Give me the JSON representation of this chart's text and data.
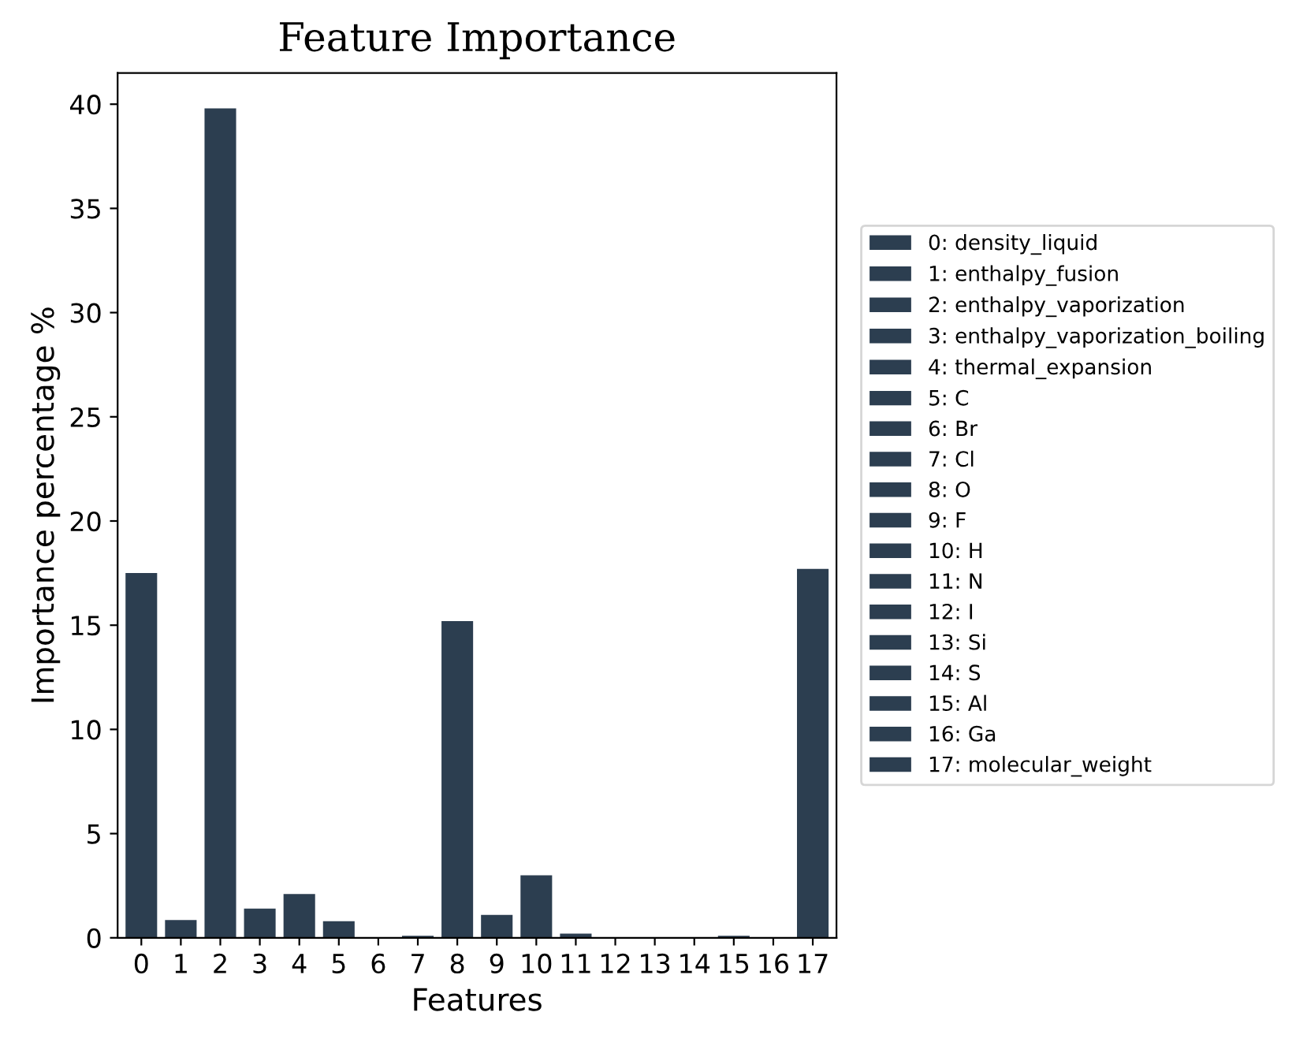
{
  "chart_data": {
    "type": "bar",
    "title": "Feature Importance",
    "xlabel": "Features",
    "ylabel": "Importance percentage %",
    "categories": [
      "0",
      "1",
      "2",
      "3",
      "4",
      "5",
      "6",
      "7",
      "8",
      "9",
      "10",
      "11",
      "12",
      "13",
      "14",
      "15",
      "16",
      "17"
    ],
    "series": [
      {
        "name": "0: density_liquid",
        "color": "#2c3e50",
        "values": [
          17.5,
          null,
          null,
          null,
          null,
          null,
          null,
          null,
          null,
          null,
          null,
          null,
          null,
          null,
          null,
          null,
          null,
          null
        ]
      },
      {
        "name": "1: enthalpy_fusion",
        "color": "#2c3e50",
        "values": [
          null,
          0.85,
          null,
          null,
          null,
          null,
          null,
          null,
          null,
          null,
          null,
          null,
          null,
          null,
          null,
          null,
          null,
          null
        ]
      },
      {
        "name": "2: enthalpy_vaporization",
        "color": "#2c3e50",
        "values": [
          null,
          null,
          39.8,
          null,
          null,
          null,
          null,
          null,
          null,
          null,
          null,
          null,
          null,
          null,
          null,
          null,
          null,
          null
        ]
      },
      {
        "name": "3: enthalpy_vaporization_boiling",
        "color": "#2c3e50",
        "values": [
          null,
          null,
          null,
          1.4,
          null,
          null,
          null,
          null,
          null,
          null,
          null,
          null,
          null,
          null,
          null,
          null,
          null,
          null
        ]
      },
      {
        "name": "4: thermal_expansion",
        "color": "#2c3e50",
        "values": [
          null,
          null,
          null,
          null,
          2.1,
          null,
          null,
          null,
          null,
          null,
          null,
          null,
          null,
          null,
          null,
          null,
          null,
          null
        ]
      },
      {
        "name": "5: C",
        "color": "#2c3e50",
        "values": [
          null,
          null,
          null,
          null,
          null,
          0.8,
          null,
          null,
          null,
          null,
          null,
          null,
          null,
          null,
          null,
          null,
          null,
          null
        ]
      },
      {
        "name": "6: Br",
        "color": "#2c3e50",
        "values": [
          null,
          null,
          null,
          null,
          null,
          null,
          0,
          null,
          null,
          null,
          null,
          null,
          null,
          null,
          null,
          null,
          null,
          null
        ]
      },
      {
        "name": "7: Cl",
        "color": "#2c3e50",
        "values": [
          null,
          null,
          null,
          null,
          null,
          null,
          null,
          0.1,
          null,
          null,
          null,
          null,
          null,
          null,
          null,
          null,
          null,
          null
        ]
      },
      {
        "name": "8: O",
        "color": "#2c3e50",
        "values": [
          null,
          null,
          null,
          null,
          null,
          null,
          null,
          null,
          15.2,
          null,
          null,
          null,
          null,
          null,
          null,
          null,
          null,
          null
        ]
      },
      {
        "name": "9: F",
        "color": "#2c3e50",
        "values": [
          null,
          null,
          null,
          null,
          null,
          null,
          null,
          null,
          null,
          1.1,
          null,
          null,
          null,
          null,
          null,
          null,
          null,
          null
        ]
      },
      {
        "name": "10: H",
        "color": "#2c3e50",
        "values": [
          null,
          null,
          null,
          null,
          null,
          null,
          null,
          null,
          null,
          null,
          3.0,
          null,
          null,
          null,
          null,
          null,
          null,
          null
        ]
      },
      {
        "name": "11: N",
        "color": "#2c3e50",
        "values": [
          null,
          null,
          null,
          null,
          null,
          null,
          null,
          null,
          null,
          null,
          null,
          0.2,
          null,
          null,
          null,
          null,
          null,
          null
        ]
      },
      {
        "name": "12: I",
        "color": "#2c3e50",
        "values": [
          null,
          null,
          null,
          null,
          null,
          null,
          null,
          null,
          null,
          null,
          null,
          null,
          0,
          null,
          null,
          null,
          null,
          null
        ]
      },
      {
        "name": "13: Si",
        "color": "#2c3e50",
        "values": [
          null,
          null,
          null,
          null,
          null,
          null,
          null,
          null,
          null,
          null,
          null,
          null,
          null,
          0,
          null,
          null,
          null,
          null
        ]
      },
      {
        "name": "14: S",
        "color": "#2c3e50",
        "values": [
          null,
          null,
          null,
          null,
          null,
          null,
          null,
          null,
          null,
          null,
          null,
          null,
          null,
          null,
          0,
          null,
          null,
          null
        ]
      },
      {
        "name": "15: Al",
        "color": "#2c3e50",
        "values": [
          null,
          null,
          null,
          null,
          null,
          null,
          null,
          null,
          null,
          null,
          null,
          null,
          null,
          null,
          null,
          0.1,
          null,
          null
        ]
      },
      {
        "name": "16: Ga",
        "color": "#2c3e50",
        "values": [
          null,
          null,
          null,
          null,
          null,
          null,
          null,
          null,
          null,
          null,
          null,
          null,
          null,
          null,
          null,
          null,
          0,
          null
        ]
      },
      {
        "name": "17: molecular_weight",
        "color": "#2c3e50",
        "values": [
          null,
          null,
          null,
          null,
          null,
          null,
          null,
          null,
          null,
          null,
          null,
          null,
          null,
          null,
          null,
          null,
          null,
          17.7
        ]
      }
    ],
    "ylim": [
      0,
      41.5
    ],
    "yticks": [
      0,
      5,
      10,
      15,
      20,
      25,
      30,
      35,
      40
    ],
    "legend": "right"
  }
}
